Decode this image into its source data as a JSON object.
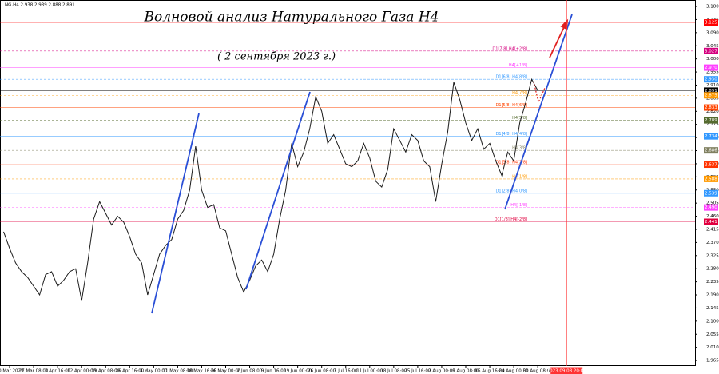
{
  "chart_data": {
    "type": "line",
    "header": "NG,H4  2.938 2.939 2.888 2.891",
    "title": "Волновой анализ Натурального Газа H4",
    "subtitle": "( 2 сентября 2023 г.)",
    "color": "#1a1a1a",
    "x": [
      0,
      1,
      2,
      3,
      4,
      5,
      6,
      7,
      8,
      9,
      10,
      11,
      12,
      13,
      14,
      15,
      16,
      17,
      18,
      19,
      20,
      21,
      22,
      23,
      24,
      25,
      26,
      27,
      28,
      29,
      30,
      31,
      32,
      33,
      34,
      35,
      36,
      37,
      38,
      39,
      40,
      41,
      42,
      43,
      44,
      45,
      46,
      47,
      48,
      49,
      50,
      51,
      52,
      53,
      54,
      55,
      56,
      57,
      58,
      59,
      60,
      61,
      62,
      63,
      64,
      65,
      66,
      67,
      68,
      69,
      70,
      71,
      72,
      73,
      74,
      75,
      76,
      77,
      78,
      79,
      80,
      81,
      82,
      83,
      84,
      85,
      86,
      87,
      88,
      89
    ],
    "values": [
      2.407,
      2.35,
      2.3,
      2.27,
      2.25,
      2.22,
      2.19,
      2.26,
      2.27,
      2.22,
      2.24,
      2.27,
      2.28,
      2.17,
      2.3,
      2.45,
      2.51,
      2.47,
      2.43,
      2.46,
      2.44,
      2.39,
      2.33,
      2.3,
      2.19,
      2.26,
      2.33,
      2.36,
      2.38,
      2.45,
      2.48,
      2.55,
      2.7,
      2.55,
      2.49,
      2.5,
      2.42,
      2.41,
      2.33,
      2.25,
      2.2,
      2.24,
      2.29,
      2.31,
      2.27,
      2.33,
      2.45,
      2.55,
      2.71,
      2.63,
      2.68,
      2.76,
      2.87,
      2.82,
      2.71,
      2.74,
      2.69,
      2.64,
      2.63,
      2.65,
      2.71,
      2.66,
      2.58,
      2.56,
      2.62,
      2.76,
      2.72,
      2.68,
      2.74,
      2.72,
      2.65,
      2.63,
      2.51,
      2.64,
      2.75,
      2.92,
      2.86,
      2.78,
      2.72,
      2.76,
      2.69,
      2.71,
      2.65,
      2.6,
      2.68,
      2.65,
      2.78,
      2.85,
      2.93,
      2.891
    ],
    "xlim": [
      -0.6,
      115.2
    ],
    "xticks": [
      {
        "value": 1,
        "label": "20 Mar 2023"
      },
      {
        "value": 5,
        "label": "27 Mar 08:00"
      },
      {
        "value": 9,
        "label": "3 Apr 16:00"
      },
      {
        "value": 13,
        "label": "12 Apr 00:00"
      },
      {
        "value": 17,
        "label": "19 Apr 08:00"
      },
      {
        "value": 21,
        "label": "26 Apr 16:00"
      },
      {
        "value": 25,
        "label": "4 May 00:00"
      },
      {
        "value": 29,
        "label": "11 May 08:00"
      },
      {
        "value": 33,
        "label": "18 May 16:00"
      },
      {
        "value": 37,
        "label": "26 May 00:00"
      },
      {
        "value": 41,
        "label": "2 Jun 08:00"
      },
      {
        "value": 45,
        "label": "9 Jun 16:00"
      },
      {
        "value": 49,
        "label": "19 Jun 00:00"
      },
      {
        "value": 53,
        "label": "26 Jun 08:00"
      },
      {
        "value": 57,
        "label": "3 Jul 16:00"
      },
      {
        "value": 61,
        "label": "11 Jul 00:00"
      },
      {
        "value": 65,
        "label": "18 Jul 08:00"
      },
      {
        "value": 69,
        "label": "25 Jul 16:00"
      },
      {
        "value": 73,
        "label": "2 Aug 00:00"
      },
      {
        "value": 77,
        "label": "9 Aug 08:00"
      },
      {
        "value": 81,
        "label": "16 Aug 16:00"
      },
      {
        "value": 85,
        "label": "24 Aug 00:00"
      },
      {
        "value": 89,
        "label": "31 Aug 08:00"
      }
    ],
    "x_marker": {
      "value": 93.8,
      "label": "2023.09.08 20:00",
      "color": "#ff3333"
    },
    "ylim": [
      1.946,
      3.202
    ],
    "yticks": [
      {
        "value": 3.18,
        "label": "3.180"
      },
      3.135,
      {
        "value": 3.09,
        "label": "3.090"
      },
      3.045,
      {
        "value": 3.0,
        "label": "3.000"
      },
      2.955,
      {
        "value": 2.91,
        "label": "2.910"
      },
      2.865,
      {
        "value": 2.82,
        "label": "2.820"
      },
      2.775,
      {
        "value": 2.73,
        "label": "2.730"
      },
      2.685,
      {
        "value": 2.64,
        "label": "2.640"
      },
      2.595,
      {
        "value": 2.55,
        "label": "2.550"
      },
      2.505,
      {
        "value": 2.46,
        "label": "2.460"
      },
      2.415,
      {
        "value": 2.37,
        "label": "2.370"
      },
      2.325,
      {
        "value": 2.28,
        "label": "2.280"
      },
      2.235,
      {
        "value": 2.19,
        "label": "2.190"
      },
      2.145,
      {
        "value": 2.1,
        "label": "2.100"
      },
      2.055,
      {
        "value": 2.01,
        "label": "2.010"
      },
      1.965
    ],
    "levels": [
      {
        "value": 3.125,
        "color": "#ff0000"
      },
      {
        "value": 3.027,
        "color": "#d4007f",
        "text": "D1[7/8] H4[+2/8]"
      },
      {
        "value": 2.97,
        "label": "2.970",
        "color": "#ff40ff",
        "text": "H4[+1/8]"
      },
      {
        "value": 2.93,
        "label": "2.930",
        "color": "#3399ff",
        "text": "D1[6/8] H4[8/8]"
      },
      {
        "value": 2.891,
        "color": "#000000"
      },
      {
        "value": 2.875,
        "color": "#ff9900",
        "text": "H4[7/8]"
      },
      {
        "value": 2.833,
        "color": "#ff4400",
        "text": "D1[5/8] H4[6/8]"
      },
      {
        "value": 2.789,
        "color": "#556b2f",
        "text": "H4[5/8]"
      },
      {
        "value": 2.734,
        "color": "#3399ff",
        "text": "D1[4/8] H4[4/8]"
      },
      {
        "value": 2.686,
        "color": "#808060",
        "text": "H4[3/8]"
      },
      {
        "value": 2.637,
        "color": "#ff3300",
        "text": "D1[3/8] H4[2/8]"
      },
      {
        "value": 2.588,
        "color": "#ff9900",
        "text": "H4[1/8]"
      },
      {
        "value": 2.539,
        "color": "#3399ff",
        "text": "D1[2/8] H4[0/8]"
      },
      {
        "value": 2.49,
        "label": "2.490",
        "color": "#ff40ff",
        "text": "H4[-1/8]"
      },
      {
        "value": 2.441,
        "color": "#e0003f",
        "text": "D1[1/8] H4[-2/8]"
      }
    ]
  }
}
